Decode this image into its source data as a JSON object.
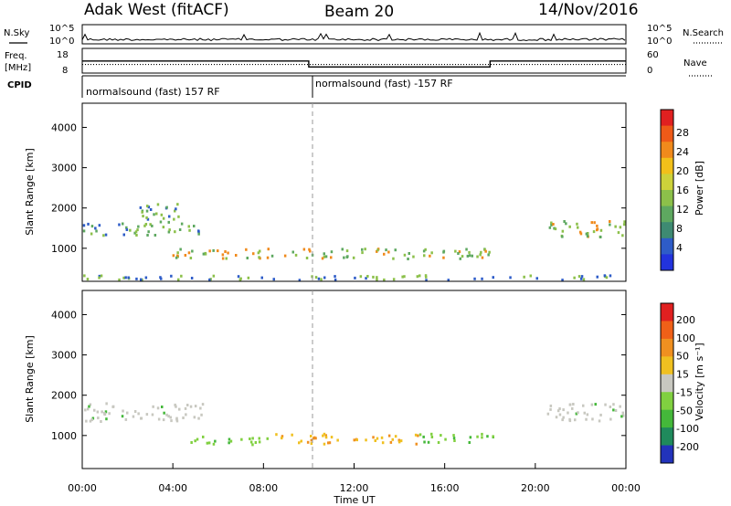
{
  "header": {
    "radar": "Adak West (fitACF)",
    "beam": "Beam 20",
    "date": "14/Nov/2016"
  },
  "chart_data": [
    {
      "type": "line",
      "panel": "noise",
      "left_label": "N.Sky",
      "right_label": "N.Search",
      "left_ticks": [
        "10^5",
        "10^0"
      ],
      "right_ticks": [
        "10^5",
        "10^0"
      ]
    },
    {
      "type": "line",
      "panel": "frequency",
      "left_label_line1": "Freq.",
      "left_label_line2": "[MHz]",
      "right_label": "Nave",
      "left_ticks": [
        "18",
        "8"
      ],
      "right_ticks": [
        "60",
        "0"
      ],
      "x_hours": [
        0,
        10,
        10,
        18,
        18,
        24
      ],
      "freq_mhz": [
        12.9,
        12.9,
        10.5,
        10.5,
        12.9,
        12.9
      ],
      "nave": [
        21,
        21,
        21,
        21,
        21,
        21
      ]
    },
    {
      "type": "table",
      "panel": "cpid",
      "label": "CPID",
      "segments": [
        {
          "start": 0,
          "end": 10,
          "text": "normalsound (fast) 157 RF"
        },
        {
          "start": 10,
          "end": 24,
          "text": "normalsound (fast) -157 RF"
        }
      ]
    },
    {
      "type": "heatmap",
      "panel": "power",
      "ylabel": "Slant Range [km]",
      "ylim": [
        180,
        4600
      ],
      "yticks": [
        "1000",
        "2000",
        "3000",
        "4000"
      ],
      "yticks_values": [
        1000,
        2000,
        3000,
        4000
      ],
      "colorbar_label": "Power [dB]",
      "colorbar_ticks": [
        "28",
        "24",
        "20",
        "16",
        "12",
        "8",
        "4"
      ],
      "colorbar_colors": [
        "#2233dd",
        "#2e5cc8",
        "#3e8a72",
        "#5ea860",
        "#8cc04a",
        "#cdd23a",
        "#f2c01a",
        "#f08a1c",
        "#ee5a18",
        "#e02020"
      ],
      "echo_regions": [
        {
          "t0": 0.0,
          "t1": 5.3,
          "r_center": 1500,
          "r_width": 300,
          "intensity": "moderate"
        },
        {
          "t0": 2.2,
          "t1": 4.4,
          "r_center": 1900,
          "r_width": 450,
          "intensity": "moderate"
        },
        {
          "t0": 3.8,
          "t1": 18.2,
          "r_center": 900,
          "r_width": 260,
          "intensity": "strong"
        },
        {
          "t0": 20.5,
          "t1": 24.0,
          "r_center": 1500,
          "r_width": 420,
          "intensity": "strong"
        },
        {
          "t0": 0.0,
          "t1": 24.0,
          "r_center": 300,
          "r_width": 120,
          "intensity": "weak"
        }
      ]
    },
    {
      "type": "heatmap",
      "panel": "velocity",
      "ylabel": "Slant Range [km]",
      "ylim": [
        180,
        4600
      ],
      "yticks": [
        "1000",
        "2000",
        "3000",
        "4000"
      ],
      "yticks_values": [
        1000,
        2000,
        3000,
        4000
      ],
      "xlabel": "Time UT",
      "xticks": [
        "00:00",
        "04:00",
        "08:00",
        "12:00",
        "16:00",
        "20:00",
        "00:00"
      ],
      "xticks_values": [
        0,
        4,
        8,
        12,
        16,
        20,
        24
      ],
      "colorbar_label": "Velocity [m s⁻¹]",
      "colorbar_ticks": [
        "200",
        "100",
        "50",
        "15",
        "-15",
        "-50",
        "-100",
        "-200"
      ],
      "colorbar_colors": [
        "#2233bb",
        "#1f8a5c",
        "#44b83a",
        "#80d040",
        "#c8c8c0",
        "#f0c020",
        "#f09020",
        "#f06018",
        "#e02020"
      ],
      "echo_regions": [
        {
          "t0": 0.0,
          "t1": 5.3,
          "r_center": 1600,
          "r_width": 450,
          "class": "ground"
        },
        {
          "t0": 4.5,
          "t1": 8.5,
          "r_center": 900,
          "r_width": 200,
          "class": "green"
        },
        {
          "t0": 8.5,
          "t1": 14.8,
          "r_center": 950,
          "r_width": 260,
          "class": "orange"
        },
        {
          "t0": 14.8,
          "t1": 18.2,
          "r_center": 950,
          "r_width": 240,
          "class": "green"
        },
        {
          "t0": 20.5,
          "t1": 24.0,
          "r_center": 1600,
          "r_width": 450,
          "class": "ground"
        }
      ]
    }
  ]
}
